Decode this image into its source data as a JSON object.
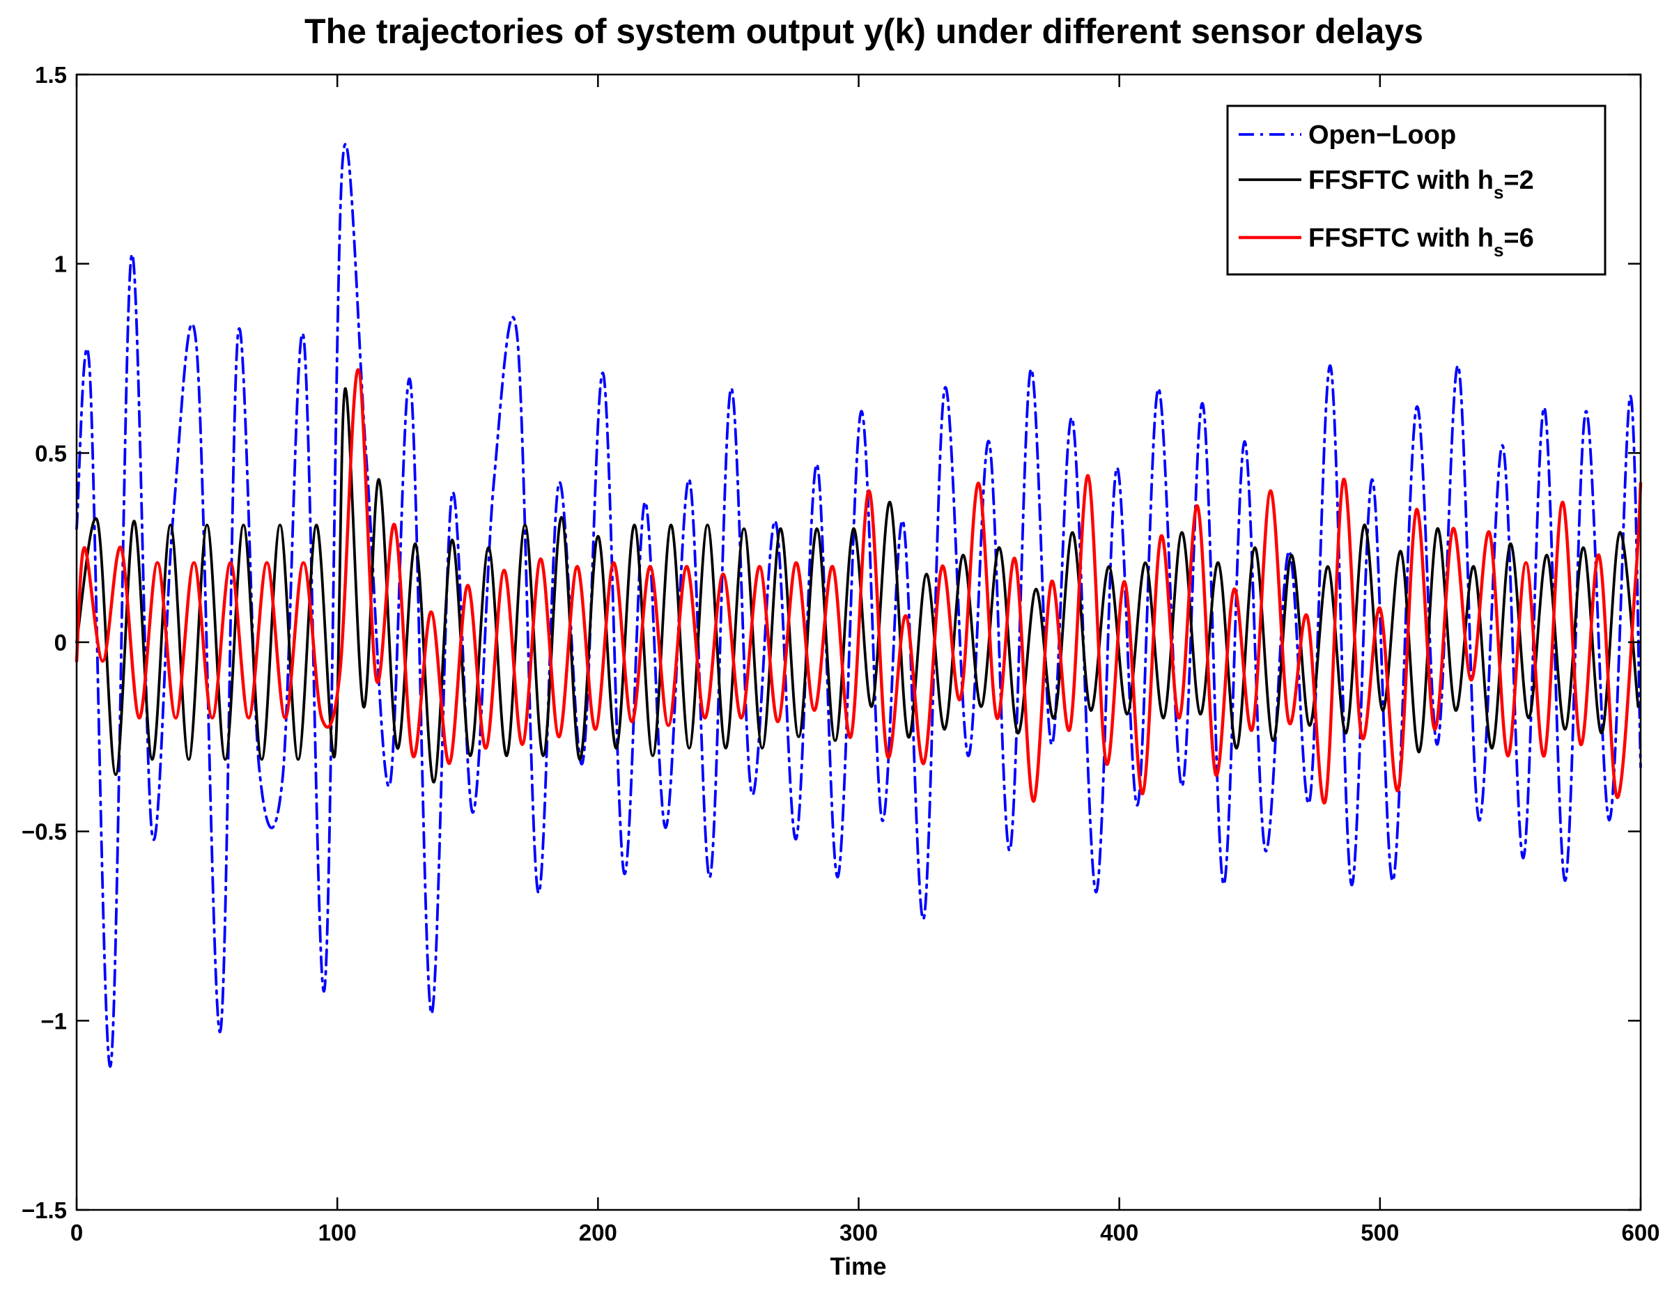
{
  "chart_data": {
    "type": "line",
    "title": "The trajectories of system output y(k) under different sensor delays",
    "xlabel": "Time",
    "ylabel": "",
    "xlim": [
      0,
      600
    ],
    "ylim": [
      -1.5,
      1.5
    ],
    "xticks": [
      0,
      100,
      200,
      300,
      400,
      500,
      600
    ],
    "yticks": [
      -1.5,
      -1,
      -0.5,
      0,
      0.5,
      1,
      1.5
    ],
    "xtick_labels": [
      "0",
      "100",
      "200",
      "300",
      "400",
      "500",
      "600"
    ],
    "ytick_labels": [
      "−1.5",
      "−1",
      "−0.5",
      "0",
      "0.5",
      "1",
      "1.5"
    ],
    "grid": false,
    "legend_position": "top-right",
    "series": [
      {
        "name": "Open-Loop",
        "label_main": "Open−Loop",
        "label_sub": "",
        "label_tail": "",
        "color": "#0000ff",
        "dash": "dash-dot",
        "x": [
          0,
          5,
          13,
          21,
          29,
          37,
          46,
          55,
          62,
          70,
          79,
          87,
          95,
          102,
          111,
          120,
          128,
          136,
          144,
          152,
          160,
          169,
          177,
          185,
          194,
          202,
          210,
          218,
          226,
          235,
          243,
          251,
          259,
          268,
          276,
          284,
          292,
          301,
          309,
          317,
          325,
          333,
          342,
          350,
          358,
          366,
          374,
          382,
          391,
          399,
          407,
          415,
          424,
          432,
          440,
          448,
          456,
          465,
          473,
          481,
          489,
          497,
          505,
          514,
          522,
          530,
          538,
          547,
          555,
          563,
          571,
          579,
          588,
          596,
          600
        ],
        "y": [
          0.3,
          0.72,
          -1.12,
          1.02,
          -0.51,
          0.33,
          0.78,
          -1.03,
          0.82,
          -0.33,
          -0.36,
          0.81,
          -0.92,
          1.27,
          0.5,
          -0.38,
          0.69,
          -0.98,
          0.39,
          -0.45,
          0.42,
          0.81,
          -0.66,
          0.42,
          -0.32,
          0.71,
          -0.61,
          0.37,
          -0.49,
          0.43,
          -0.62,
          0.67,
          -0.4,
          0.32,
          -0.52,
          0.47,
          -0.62,
          0.61,
          -0.47,
          0.32,
          -0.73,
          0.67,
          -0.3,
          0.53,
          -0.55,
          0.72,
          -0.27,
          0.59,
          -0.66,
          0.46,
          -0.43,
          0.67,
          -0.38,
          0.63,
          -0.64,
          0.53,
          -0.55,
          0.24,
          -0.42,
          0.73,
          -0.64,
          0.43,
          -0.63,
          0.62,
          -0.27,
          0.73,
          -0.47,
          0.52,
          -0.57,
          0.62,
          -0.63,
          0.61,
          -0.47,
          0.65,
          -0.33
        ]
      },
      {
        "name": "FFSFTC with hs=2",
        "label_main": "FFSFTC with h",
        "label_sub": "s",
        "label_tail": "=2",
        "color": "#000000",
        "dash": "solid",
        "x": [
          0,
          8,
          15,
          22,
          29,
          36,
          43,
          50,
          57,
          64,
          71,
          78,
          85,
          92,
          99,
          103,
          110,
          116,
          123,
          130,
          137,
          144,
          151,
          158,
          165,
          172,
          179,
          186,
          193,
          200,
          207,
          214,
          221,
          228,
          235,
          242,
          249,
          256,
          263,
          270,
          277,
          284,
          291,
          298,
          305,
          312,
          319,
          326,
          333,
          340,
          347,
          354,
          361,
          368,
          375,
          382,
          389,
          396,
          403,
          410,
          417,
          424,
          431,
          438,
          445,
          452,
          459,
          466,
          473,
          480,
          487,
          494,
          501,
          508,
          515,
          522,
          529,
          536,
          543,
          550,
          557,
          564,
          571,
          578,
          585,
          592,
          599
        ],
        "y": [
          0.0,
          0.32,
          -0.35,
          0.32,
          -0.31,
          0.31,
          -0.31,
          0.31,
          -0.31,
          0.31,
          -0.31,
          0.31,
          -0.31,
          0.31,
          -0.3,
          0.67,
          -0.17,
          0.43,
          -0.28,
          0.26,
          -0.37,
          0.27,
          -0.3,
          0.25,
          -0.3,
          0.31,
          -0.3,
          0.33,
          -0.31,
          0.28,
          -0.28,
          0.31,
          -0.3,
          0.31,
          -0.28,
          0.31,
          -0.28,
          0.3,
          -0.28,
          0.3,
          -0.25,
          0.3,
          -0.26,
          0.3,
          -0.17,
          0.37,
          -0.25,
          0.18,
          -0.23,
          0.23,
          -0.17,
          0.25,
          -0.24,
          0.14,
          -0.2,
          0.29,
          -0.18,
          0.2,
          -0.19,
          0.21,
          -0.2,
          0.29,
          -0.19,
          0.21,
          -0.28,
          0.25,
          -0.26,
          0.23,
          -0.22,
          0.2,
          -0.24,
          0.31,
          -0.18,
          0.24,
          -0.29,
          0.3,
          -0.18,
          0.2,
          -0.28,
          0.26,
          -0.2,
          0.23,
          -0.23,
          0.25,
          -0.24,
          0.29,
          -0.17
        ]
      },
      {
        "name": "FFSFTC with hs=6",
        "label_main": "FFSFTC with h",
        "label_sub": "s",
        "label_tail": "=6",
        "color": "#ff0000",
        "dash": "solid",
        "x": [
          0,
          3,
          10,
          17,
          24,
          31,
          38,
          45,
          52,
          59,
          66,
          73,
          80,
          87,
          94,
          101,
          108,
          115,
          122,
          129,
          136,
          143,
          150,
          157,
          164,
          171,
          178,
          185,
          192,
          199,
          206,
          213,
          220,
          227,
          234,
          241,
          248,
          255,
          262,
          269,
          276,
          283,
          290,
          297,
          304,
          311,
          318,
          325,
          332,
          339,
          346,
          353,
          360,
          367,
          374,
          381,
          388,
          395,
          402,
          409,
          416,
          423,
          430,
          437,
          444,
          451,
          458,
          465,
          472,
          479,
          486,
          493,
          500,
          507,
          514,
          521,
          528,
          535,
          542,
          549,
          556,
          563,
          570,
          577,
          584,
          591,
          598,
          600
        ],
        "y": [
          -0.05,
          0.25,
          -0.05,
          0.25,
          -0.2,
          0.21,
          -0.2,
          0.21,
          -0.2,
          0.21,
          -0.2,
          0.21,
          -0.2,
          0.21,
          -0.2,
          -0.08,
          0.72,
          -0.1,
          0.31,
          -0.3,
          0.08,
          -0.32,
          0.15,
          -0.28,
          0.19,
          -0.27,
          0.22,
          -0.25,
          0.2,
          -0.23,
          0.21,
          -0.21,
          0.2,
          -0.22,
          0.2,
          -0.2,
          0.18,
          -0.2,
          0.2,
          -0.21,
          0.21,
          -0.18,
          0.2,
          -0.25,
          0.4,
          -0.3,
          0.07,
          -0.32,
          0.2,
          -0.15,
          0.42,
          -0.2,
          0.22,
          -0.42,
          0.16,
          -0.23,
          0.44,
          -0.32,
          0.16,
          -0.4,
          0.28,
          -0.2,
          0.36,
          -0.35,
          0.14,
          -0.23,
          0.4,
          -0.21,
          0.07,
          -0.42,
          0.43,
          -0.25,
          0.09,
          -0.39,
          0.35,
          -0.23,
          0.3,
          -0.1,
          0.29,
          -0.3,
          0.21,
          -0.3,
          0.37,
          -0.27,
          0.23,
          -0.41,
          0.16,
          0.42
        ]
      }
    ]
  }
}
